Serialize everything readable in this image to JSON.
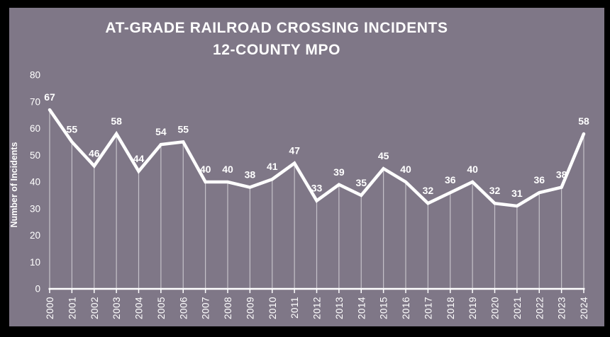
{
  "frame": {
    "background_color": "#7f7787",
    "border_color": "#000000"
  },
  "title": {
    "line1": "AT-GRADE RAILROAD CROSSING INCIDENTS",
    "line2": "12-COUNTY MPO"
  },
  "chart_data": {
    "type": "line",
    "title": "AT-GRADE RAILROAD CROSSING INCIDENTS 12-COUNTY MPO",
    "xlabel": "",
    "ylabel": "Number of Incidents",
    "x": [
      "2000",
      "2001",
      "2002",
      "2003",
      "2004",
      "2005",
      "2006",
      "2007",
      "2008",
      "2009",
      "2010",
      "2011",
      "2012",
      "2013",
      "2014",
      "2015",
      "2016",
      "2017",
      "2018",
      "2019",
      "2020",
      "2021",
      "2022",
      "2023",
      "2024"
    ],
    "values": [
      67,
      55,
      46,
      58,
      44,
      54,
      55,
      40,
      40,
      38,
      41,
      47,
      33,
      39,
      35,
      45,
      40,
      32,
      36,
      40,
      32,
      31,
      36,
      38,
      58
    ],
    "ylim": [
      0,
      80
    ],
    "yticks": [
      0,
      10,
      20,
      30,
      40,
      50,
      60,
      70,
      80
    ],
    "grid": false,
    "legend": "none",
    "data_labels": true,
    "drop_lines": true,
    "line_color": "#ffffff",
    "label_color": "#ffffff",
    "background": "#7f7787"
  }
}
